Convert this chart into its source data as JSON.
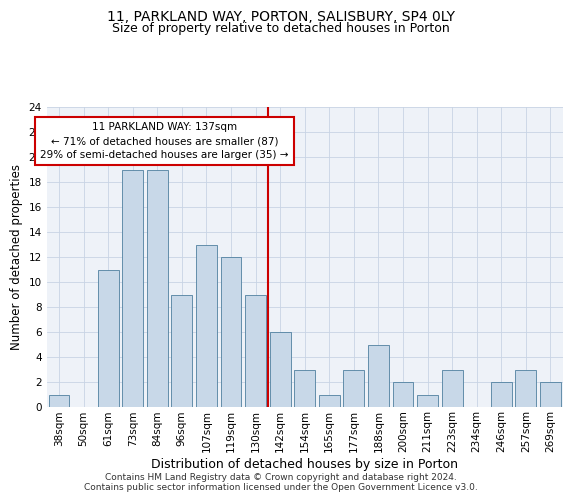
{
  "title1": "11, PARKLAND WAY, PORTON, SALISBURY, SP4 0LY",
  "title2": "Size of property relative to detached houses in Porton",
  "xlabel": "Distribution of detached houses by size in Porton",
  "ylabel": "Number of detached properties",
  "footer1": "Contains HM Land Registry data © Crown copyright and database right 2024.",
  "footer2": "Contains public sector information licensed under the Open Government Licence v3.0.",
  "categories": [
    "38sqm",
    "50sqm",
    "61sqm",
    "73sqm",
    "84sqm",
    "96sqm",
    "107sqm",
    "119sqm",
    "130sqm",
    "142sqm",
    "154sqm",
    "165sqm",
    "177sqm",
    "188sqm",
    "200sqm",
    "211sqm",
    "223sqm",
    "234sqm",
    "246sqm",
    "257sqm",
    "269sqm"
  ],
  "values": [
    1,
    0,
    11,
    19,
    19,
    9,
    13,
    12,
    9,
    6,
    3,
    1,
    3,
    5,
    2,
    1,
    3,
    0,
    2,
    3,
    2
  ],
  "bar_color": "#c8d8e8",
  "bar_edge_color": "#5080a0",
  "annotation_line1": "11 PARKLAND WAY: 137sqm",
  "annotation_line2": "← 71% of detached houses are smaller (87)",
  "annotation_line3": "29% of semi-detached houses are larger (35) →",
  "vline_color": "#cc0000",
  "annotation_box_edge_color": "#cc0000",
  "ylim": [
    0,
    24
  ],
  "yticks": [
    0,
    2,
    4,
    6,
    8,
    10,
    12,
    14,
    16,
    18,
    20,
    22,
    24
  ],
  "grid_color": "#c8d4e4",
  "bg_color": "#eef2f8",
  "title1_fontsize": 10,
  "title2_fontsize": 9,
  "xlabel_fontsize": 9,
  "ylabel_fontsize": 8.5,
  "tick_fontsize": 7.5,
  "annotation_fontsize": 7.5,
  "footer_fontsize": 6.5
}
